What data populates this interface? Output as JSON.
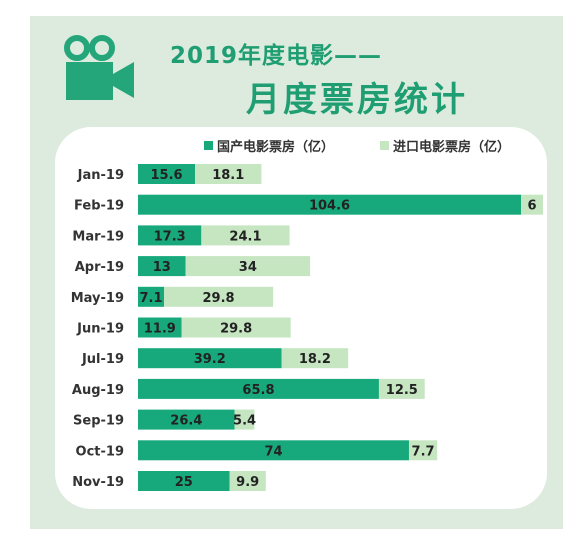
{
  "title_line1": "2019年度电影——",
  "title_line2": "月度票房统计",
  "icon": "movie-camera-icon",
  "colors": {
    "background": "#dcebdd",
    "title": "#1e9e72",
    "domestic": "#17a97b",
    "imported": "#c6e6c2"
  },
  "chart_data": {
    "type": "bar",
    "orientation": "horizontal",
    "stacked": true,
    "categories": [
      "Jan-19",
      "Feb-19",
      "Mar-19",
      "Apr-19",
      "May-19",
      "Jun-19",
      "Jul-19",
      "Aug-19",
      "Sep-19",
      "Oct-19",
      "Nov-19"
    ],
    "series": [
      {
        "name": "国产电影票房（亿）",
        "values": [
          15.6,
          104.6,
          17.3,
          13,
          7.1,
          11.9,
          39.2,
          65.8,
          26.4,
          74,
          25
        ]
      },
      {
        "name": "进口电影票房（亿）",
        "values": [
          18.1,
          6,
          24.1,
          34,
          29.8,
          29.8,
          18.2,
          12.5,
          5.4,
          7.7,
          9.9
        ]
      }
    ],
    "legend_position": "top",
    "grid": false,
    "xlim": [
      0,
      110.6
    ]
  }
}
